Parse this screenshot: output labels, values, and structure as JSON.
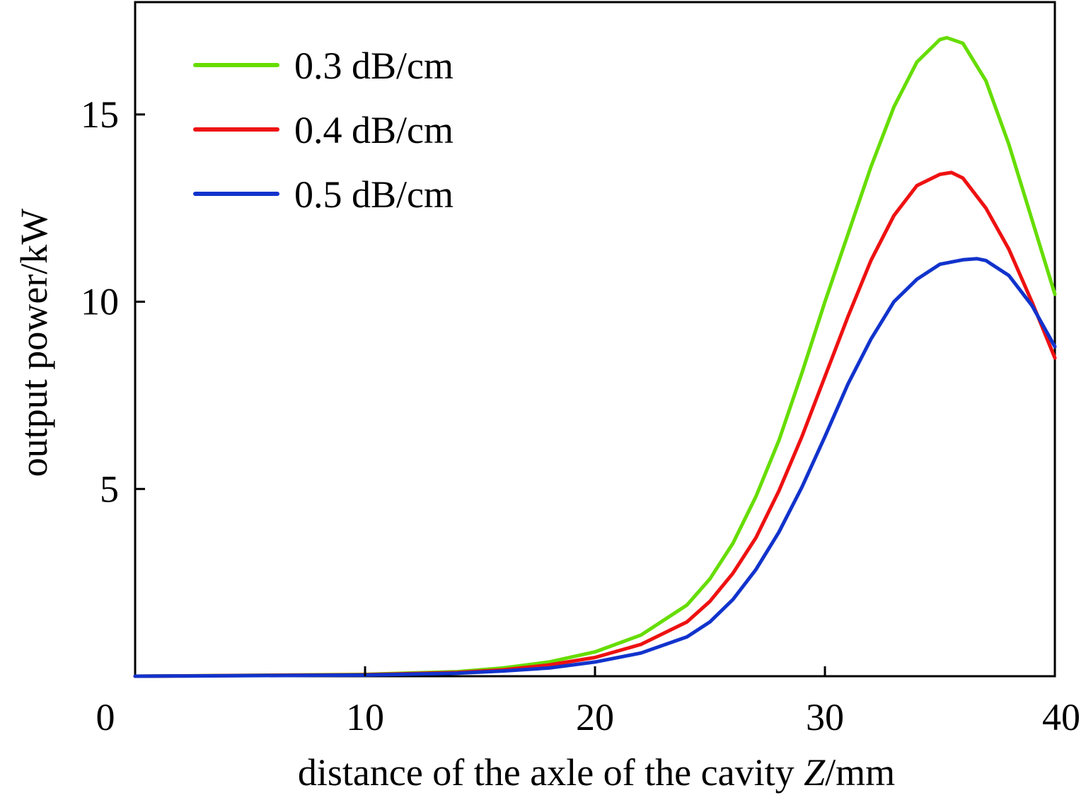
{
  "chart_data": {
    "type": "line",
    "title": "",
    "xlabel_prefix": "distance of the axle of the cavity ",
    "xlabel_var": "Z",
    "xlabel_suffix": "/mm",
    "ylabel": "output power/kW",
    "xlim": [
      0,
      40
    ],
    "ylim": [
      0,
      18
    ],
    "xticks": [
      0,
      10,
      20,
      30,
      40
    ],
    "xtick_labels": [
      "0",
      "10",
      "20",
      "30",
      "40"
    ],
    "yticks": [
      5,
      10,
      15
    ],
    "ytick_labels": [
      "5",
      "10",
      "15"
    ],
    "grid": false,
    "legend_position": "top-left",
    "series": [
      {
        "name": "0.3 dB/cm",
        "color": "#66dd00",
        "x": [
          0,
          10,
          14,
          16,
          18,
          20,
          22,
          24,
          25,
          26,
          27,
          28,
          29,
          30,
          31,
          32,
          33,
          34,
          35,
          35.3,
          36,
          37,
          38,
          39,
          40
        ],
        "y": [
          0,
          0.05,
          0.12,
          0.22,
          0.38,
          0.65,
          1.1,
          1.9,
          2.6,
          3.55,
          4.8,
          6.3,
          8.1,
          10.0,
          11.8,
          13.6,
          15.2,
          16.4,
          17.0,
          17.05,
          16.9,
          15.9,
          14.2,
          12.2,
          10.2
        ]
      },
      {
        "name": "0.4 dB/cm",
        "color": "#ee1111",
        "x": [
          0,
          10,
          14,
          16,
          18,
          20,
          22,
          24,
          25,
          26,
          27,
          28,
          29,
          30,
          31,
          32,
          33,
          34,
          35,
          35.5,
          36,
          37,
          38,
          39,
          40
        ],
        "y": [
          0,
          0.04,
          0.1,
          0.17,
          0.3,
          0.5,
          0.85,
          1.45,
          2.0,
          2.75,
          3.7,
          4.95,
          6.4,
          8.0,
          9.6,
          11.1,
          12.3,
          13.1,
          13.4,
          13.45,
          13.3,
          12.5,
          11.4,
          10.0,
          8.5
        ]
      },
      {
        "name": "0.5 dB/cm",
        "color": "#1133cc",
        "x": [
          0,
          10,
          14,
          16,
          18,
          20,
          22,
          24,
          25,
          26,
          27,
          28,
          29,
          30,
          31,
          32,
          33,
          34,
          35,
          36,
          36.6,
          37,
          38,
          39,
          40
        ],
        "y": [
          0,
          0.03,
          0.08,
          0.14,
          0.22,
          0.38,
          0.62,
          1.05,
          1.45,
          2.05,
          2.85,
          3.85,
          5.05,
          6.4,
          7.8,
          9.0,
          10.0,
          10.6,
          11.0,
          11.12,
          11.15,
          11.1,
          10.7,
          9.9,
          8.8
        ]
      }
    ]
  }
}
